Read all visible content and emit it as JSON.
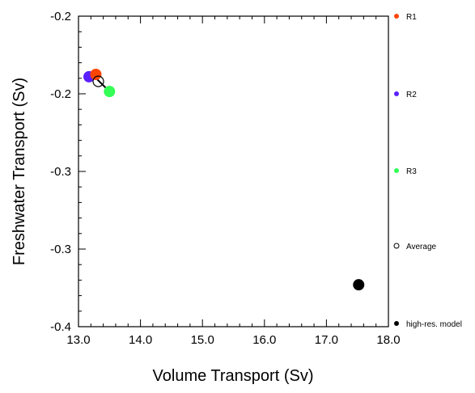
{
  "chart_data": {
    "type": "scatter",
    "xlabel": "Volume Transport (Sv)",
    "ylabel": "Freshwater Transport (Sv)",
    "xlim": [
      13.0,
      18.0
    ],
    "ylim": [
      -0.4,
      -0.2
    ],
    "x_ticks": [
      13.0,
      14.0,
      15.0,
      16.0,
      17.0,
      18.0
    ],
    "x_tick_labels": [
      "13.0",
      "14.0",
      "15.0",
      "16.0",
      "17.0",
      "18.0"
    ],
    "y_ticks": [
      -0.2,
      -0.25,
      -0.3,
      -0.35,
      -0.4
    ],
    "y_tick_labels": [
      "-0.2",
      "-0.2",
      "-0.3",
      "-0.3",
      "-0.4"
    ],
    "series": [
      {
        "name": "R1",
        "color": "#ff4500",
        "x": 13.28,
        "y": -0.2375,
        "filled": true
      },
      {
        "name": "R2",
        "color": "#5a1fff",
        "x": 13.17,
        "y": -0.239,
        "filled": true
      },
      {
        "name": "R3",
        "color": "#33ff55",
        "x": 13.5,
        "y": -0.2485,
        "filled": true
      },
      {
        "name": "Average",
        "color": "#000000",
        "x": 13.32,
        "y": -0.242,
        "filled": false
      },
      {
        "name": "high-res. model",
        "color": "#000000",
        "x": 17.52,
        "y": -0.373,
        "filled": true
      }
    ],
    "spread_line": {
      "from": [
        13.22,
        -0.2375
      ],
      "to": [
        13.5,
        -0.2485
      ]
    },
    "legend_position": "right"
  }
}
